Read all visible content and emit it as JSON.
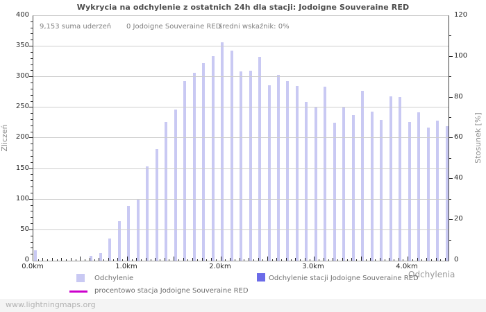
{
  "title": "Wykrycia na odchylenie z ostatnich 24h dla stacji: Jodoigne Souveraine RED",
  "summary": {
    "total_strikes": "9,153 suma uderzeń",
    "station_count": "0 Jodoigne Souveraine RED",
    "avg_indicator": "średni wskaźnik: 0%"
  },
  "axes": {
    "left": {
      "label": "Zliczeń",
      "ticks": [
        0,
        50,
        100,
        150,
        200,
        250,
        300,
        350,
        400
      ]
    },
    "right": {
      "label": "Stosunek [%]",
      "ticks": [
        0,
        20,
        40,
        60,
        80,
        100,
        120
      ]
    },
    "x": {
      "label": "Odchylenia",
      "tick_labels": [
        "0.0km",
        "1.0km",
        "2.0km",
        "3.0km",
        "4.0km"
      ]
    }
  },
  "legend": {
    "deviation": "Odchylenie",
    "station_deviation": "Odchylenie stacji Jodoigne Souveraine RED",
    "percent_line": "procentowo stacja Jodoigne Souveraine RED"
  },
  "watermark": "www.lightningmaps.org",
  "colors": {
    "bar": "#c9c9f3",
    "station_bar": "#6b6be8",
    "percent_line": "#cc00cc",
    "grid": "#cccccc",
    "axis": "#3c3c3c"
  },
  "chart_data": {
    "type": "bar",
    "title": "Wykrycia na odchylenie z ostatnich 24h dla stacji: Jodoigne Souveraine RED",
    "xlabel": "Odchylenia",
    "ylabel_left": "Zliczeń",
    "ylabel_right": "Stosunek [%]",
    "x_unit": "km",
    "x_step_km": 0.1,
    "xlim_km": [
      0.0,
      4.45
    ],
    "ylim_left": [
      0,
      400
    ],
    "ylim_right": [
      0,
      120
    ],
    "grid": true,
    "categories_km": [
      0.0,
      0.1,
      0.2,
      0.3,
      0.4,
      0.5,
      0.6,
      0.7,
      0.8,
      0.9,
      1.0,
      1.1,
      1.2,
      1.3,
      1.4,
      1.5,
      1.6,
      1.7,
      1.8,
      1.9,
      2.0,
      2.1,
      2.2,
      2.3,
      2.4,
      2.5,
      2.6,
      2.7,
      2.8,
      2.9,
      3.0,
      3.1,
      3.2,
      3.3,
      3.4,
      3.5,
      3.6,
      3.7,
      3.8,
      3.9,
      4.0,
      4.1,
      4.2,
      4.3,
      4.4
    ],
    "series": [
      {
        "name": "Odchylenie",
        "axis": "left",
        "values": [
          17,
          0,
          0,
          0,
          0,
          0,
          8,
          13,
          36,
          65,
          90,
          100,
          154,
          182,
          227,
          247,
          294,
          307,
          323,
          334,
          357,
          343,
          309,
          310,
          333,
          287,
          304,
          294,
          285,
          260,
          250,
          284,
          226,
          252,
          238,
          278,
          244,
          230,
          268,
          267,
          227,
          243,
          218,
          229,
          220
        ]
      },
      {
        "name": "Odchylenie stacji Jodoigne Souveraine RED",
        "axis": "left",
        "values": [
          0,
          0,
          0,
          0,
          0,
          0,
          0,
          0,
          0,
          0,
          0,
          0,
          0,
          0,
          0,
          0,
          0,
          0,
          0,
          0,
          0,
          0,
          0,
          0,
          0,
          0,
          0,
          0,
          0,
          0,
          0,
          0,
          0,
          0,
          0,
          0,
          0,
          0,
          0,
          0,
          0,
          0,
          0,
          0,
          0
        ]
      },
      {
        "name": "procentowo stacja Jodoigne Souveraine RED",
        "axis": "right",
        "unit": "%",
        "values": [
          0,
          0,
          0,
          0,
          0,
          0,
          0,
          0,
          0,
          0,
          0,
          0,
          0,
          0,
          0,
          0,
          0,
          0,
          0,
          0,
          0,
          0,
          0,
          0,
          0,
          0,
          0,
          0,
          0,
          0,
          0,
          0,
          0,
          0,
          0,
          0,
          0,
          0,
          0,
          0,
          0,
          0,
          0,
          0,
          0
        ]
      }
    ],
    "annotations": [
      "9,153 suma uderzeń",
      "0 Jodoigne Souveraine RED",
      "średni wskaźnik: 0%"
    ]
  }
}
